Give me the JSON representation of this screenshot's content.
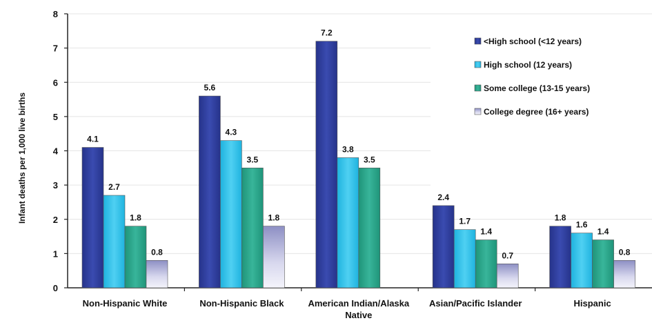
{
  "chart_data": {
    "type": "bar",
    "ylabel": "Infant deaths per 1,000 live births",
    "xlabel": "",
    "ylim": [
      0,
      8
    ],
    "yticks": [
      "0",
      "1",
      "2",
      "3",
      "4",
      "5",
      "6",
      "7",
      "8"
    ],
    "categories": [
      [
        "Non-Hispanic White"
      ],
      [
        "Non-Hispanic Black"
      ],
      [
        "American Indian/Alaska",
        "Native"
      ],
      [
        "Asian/Pacific Islander"
      ],
      [
        "Hispanic"
      ]
    ],
    "series": [
      {
        "name": "<High school (<12 years)",
        "values": [
          4.1,
          5.6,
          7.2,
          2.4,
          1.8
        ],
        "labels": [
          "4.1",
          "5.6",
          "7.2",
          "2.4",
          "1.8"
        ]
      },
      {
        "name": "High school (12 years)",
        "values": [
          2.7,
          4.3,
          3.8,
          1.7,
          1.6
        ],
        "labels": [
          "2.7",
          "4.3",
          "3.8",
          "1.7",
          "1.6"
        ]
      },
      {
        "name": "Some college (13-15 years)",
        "values": [
          1.8,
          3.5,
          3.5,
          1.4,
          1.4
        ],
        "labels": [
          "1.8",
          "3.5",
          "3.5",
          "1.4",
          "1.4"
        ]
      },
      {
        "name": "College degree (16+ years)",
        "values": [
          0.8,
          1.8,
          null,
          0.7,
          0.8
        ],
        "labels": [
          "0.8",
          "1.8",
          "",
          "0.7",
          "0.8"
        ]
      }
    ],
    "colors": [
      "#2f3f9a",
      "#2cc0ea",
      "#2aa38a",
      "#b9b9dd"
    ],
    "grid": true,
    "legend_position": "top-right"
  }
}
